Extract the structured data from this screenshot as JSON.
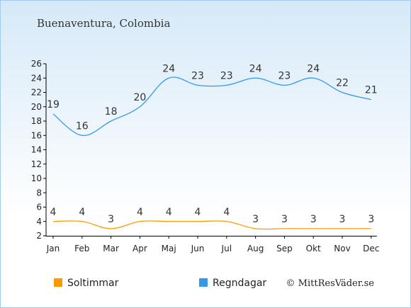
{
  "chart_data": {
    "type": "line",
    "title": "Buenaventura, Colombia",
    "categories": [
      "Jan",
      "Feb",
      "Mar",
      "Apr",
      "Maj",
      "Jun",
      "Jul",
      "Aug",
      "Sep",
      "Okt",
      "Nov",
      "Dec"
    ],
    "series": [
      {
        "name": "Regndagar",
        "color": "#3399ee",
        "values": [
          19,
          16,
          18,
          20,
          24,
          23,
          23,
          24,
          23,
          24,
          22,
          21
        ]
      },
      {
        "name": "Soltimmar",
        "color": "#ff9900",
        "values": [
          4,
          4,
          3,
          4,
          4,
          4,
          4,
          3,
          3,
          3,
          3,
          3
        ]
      }
    ],
    "ylim": [
      2,
      26
    ],
    "yticks": [
      2,
      4,
      6,
      8,
      10,
      12,
      14,
      16,
      18,
      20,
      22,
      24,
      26
    ],
    "legend": [
      {
        "name": "Soltimmar",
        "color": "#ff9900"
      },
      {
        "name": "Regndagar",
        "color": "#3399ee"
      }
    ],
    "legend_position": "bottom-left",
    "grid": false,
    "credit": "© MittResVäder.se"
  }
}
